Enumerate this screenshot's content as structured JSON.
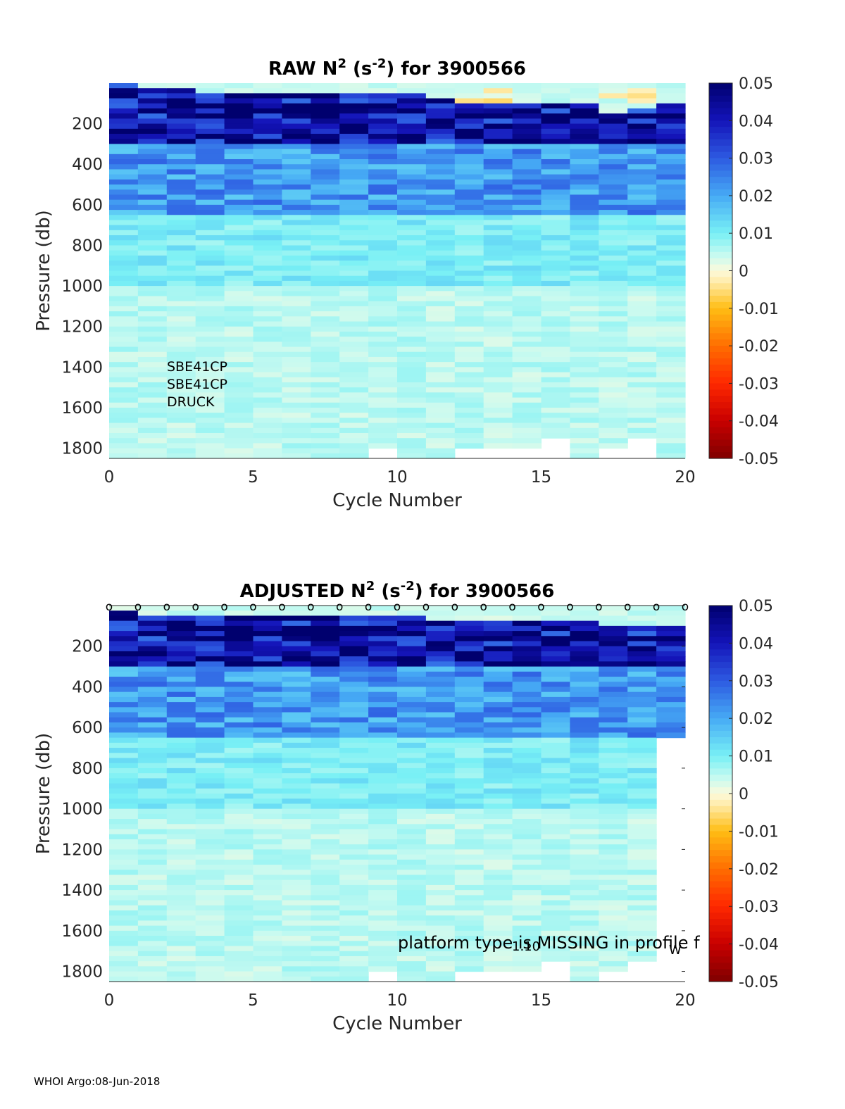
{
  "chart_data": [
    {
      "type": "heatmap",
      "title": "RAW N² (s⁻²) for 3900566",
      "title_parts": {
        "prefix": "RAW N",
        "sup1": "2",
        "mid": " (s",
        "sup2": "-2",
        "suffix": ") for 3900566"
      },
      "xlabel": "Cycle Number",
      "ylabel": "Pressure (db)",
      "xlim": [
        0,
        20
      ],
      "ylim": [
        1850,
        0
      ],
      "xticks": [
        0,
        5,
        10,
        15,
        20
      ],
      "yticks": [
        200,
        400,
        600,
        800,
        1000,
        1200,
        1400,
        1600,
        1800
      ],
      "cycles": [
        1,
        2,
        3,
        4,
        5,
        6,
        7,
        8,
        9,
        10,
        11,
        12,
        13,
        14,
        15,
        16,
        17,
        18,
        19,
        20
      ],
      "max_depths": [
        1850,
        1850,
        1850,
        1850,
        1850,
        1850,
        1850,
        1850,
        1850,
        1800,
        1850,
        1850,
        1800,
        1800,
        1800,
        1750,
        1850,
        1800,
        1750,
        1850
      ],
      "top_depths": [
        0,
        20,
        20,
        30,
        40,
        40,
        40,
        50,
        40,
        40,
        50,
        60,
        100,
        100,
        100,
        100,
        100,
        130,
        120,
        100
      ],
      "sensor_labels": [
        "SBE41CP",
        "SBE41CP",
        "DRUCK"
      ],
      "colorbar": {
        "min": -0.05,
        "max": 0.05,
        "ticks": [
          0.05,
          0.04,
          0.03,
          0.02,
          0.01,
          0,
          -0.01,
          -0.02,
          -0.03,
          -0.04,
          -0.05
        ]
      }
    },
    {
      "type": "heatmap",
      "title": "ADJUSTED N² (s⁻²) for 3900566",
      "title_parts": {
        "prefix": "ADJUSTED N",
        "sup1": "2",
        "mid": " (s",
        "sup2": "-2",
        "suffix": ") for 3900566"
      },
      "xlabel": "Cycle Number",
      "ylabel": "Pressure (db)",
      "xlim": [
        0,
        20
      ],
      "ylim": [
        1850,
        0
      ],
      "xticks": [
        0,
        5,
        10,
        15,
        20
      ],
      "yticks": [
        200,
        400,
        600,
        800,
        1000,
        1200,
        1400,
        1600,
        1800
      ],
      "cycles": [
        1,
        2,
        3,
        4,
        5,
        6,
        7,
        8,
        9,
        10,
        11,
        12,
        13,
        14,
        15,
        16,
        17,
        18,
        19,
        20
      ],
      "max_depths": [
        1850,
        1850,
        1850,
        1850,
        1850,
        1850,
        1850,
        1850,
        1850,
        1800,
        1850,
        1850,
        1800,
        1800,
        1800,
        1750,
        1850,
        1800,
        1750,
        650
      ],
      "top_depths": [
        20,
        30,
        30,
        40,
        40,
        40,
        50,
        50,
        40,
        40,
        50,
        60,
        60,
        60,
        60,
        60,
        60,
        80,
        90,
        100
      ],
      "qc_marker": "o",
      "qc_marker_cycles": [
        0,
        1,
        2,
        3,
        4,
        5,
        6,
        7,
        8,
        9,
        10,
        11,
        12,
        13,
        14,
        15,
        16,
        17,
        18,
        19,
        20
      ],
      "annotation": "platform type is MISSING in profile f",
      "overlay_text": [
        "1.10",
        "W"
      ],
      "colorbar": {
        "min": -0.05,
        "max": 0.05,
        "ticks": [
          0.05,
          0.04,
          0.03,
          0.02,
          0.01,
          0,
          -0.01,
          -0.02,
          -0.03,
          -0.04,
          -0.05
        ]
      }
    }
  ],
  "footer": "WHOI Argo:08-Jun-2018"
}
